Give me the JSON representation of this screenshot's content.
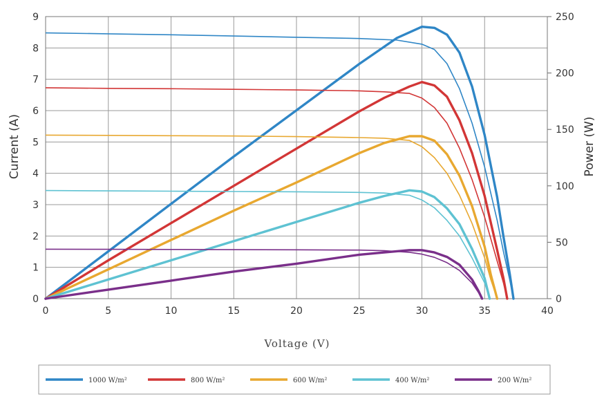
{
  "chart_data": {
    "type": "line",
    "xlabel": "Voltage (V)",
    "ylabel_left": "Current (A)",
    "ylabel_right": "Power (W)",
    "xlim": [
      0,
      40
    ],
    "ylim_left": [
      0,
      9
    ],
    "ylim_right": [
      0,
      250
    ],
    "x_ticks": [
      "0",
      "5",
      "10",
      "15",
      "20",
      "25",
      "30",
      "35",
      "40"
    ],
    "y_left_ticks": [
      "0",
      "1",
      "2",
      "3",
      "4",
      "5",
      "6",
      "7",
      "8",
      "9"
    ],
    "y_right_ticks": [
      "0",
      "50",
      "100",
      "150",
      "200",
      "250"
    ],
    "grid": true,
    "legend_position": "bottom",
    "series": [
      {
        "name": "1000 W/m²",
        "color": "#2f86c6",
        "current": {
          "x": [
            0,
            5,
            10,
            15,
            20,
            25,
            28,
            30,
            31,
            32,
            33,
            34,
            35,
            36,
            36.5,
            37,
            37.3
          ],
          "y": [
            8.48,
            8.45,
            8.42,
            8.38,
            8.34,
            8.3,
            8.25,
            8.12,
            7.95,
            7.5,
            6.7,
            5.6,
            4.2,
            2.5,
            1.5,
            0.6,
            0
          ]
        },
        "power": {
          "x": [
            0,
            5,
            10,
            15,
            20,
            25,
            28,
            30,
            31,
            32,
            33,
            34,
            35,
            36,
            36.5,
            37,
            37.3
          ],
          "y": [
            0,
            42,
            84,
            126,
            167,
            208,
            231,
            241,
            240,
            234,
            218,
            188,
            145,
            90,
            55,
            22,
            0
          ]
        }
      },
      {
        "name": "800 W/m²",
        "color": "#d23636",
        "current": {
          "x": [
            0,
            5,
            10,
            15,
            20,
            25,
            27,
            29,
            30,
            31,
            32,
            33,
            34,
            35,
            36,
            36.5,
            36.8
          ],
          "y": [
            6.73,
            6.71,
            6.7,
            6.68,
            6.66,
            6.63,
            6.6,
            6.55,
            6.4,
            6.1,
            5.6,
            4.8,
            3.8,
            2.6,
            1.2,
            0.5,
            0
          ]
        },
        "power": {
          "x": [
            0,
            5,
            10,
            15,
            20,
            25,
            27,
            29,
            30,
            31,
            32,
            33,
            34,
            35,
            36,
            36.5,
            36.8
          ],
          "y": [
            0,
            34,
            67,
            100,
            133,
            166,
            178,
            188,
            192,
            189,
            179,
            158,
            129,
            91,
            43,
            18,
            0
          ]
        }
      },
      {
        "name": "600 W/m²",
        "color": "#e8a830",
        "current": {
          "x": [
            0,
            5,
            10,
            15,
            20,
            25,
            27,
            29,
            30,
            31,
            32,
            33,
            34,
            35,
            35.5,
            36
          ],
          "y": [
            5.22,
            5.21,
            5.2,
            5.19,
            5.17,
            5.14,
            5.12,
            5.05,
            4.85,
            4.5,
            4.0,
            3.3,
            2.4,
            1.3,
            0.6,
            0
          ]
        },
        "power": {
          "x": [
            0,
            5,
            10,
            15,
            20,
            25,
            27,
            29,
            30,
            31,
            32,
            33,
            34,
            35,
            35.5,
            36
          ],
          "y": [
            0,
            26,
            52,
            78,
            103,
            129,
            138,
            144,
            144,
            140,
            128,
            109,
            82,
            46,
            21,
            0
          ]
        }
      },
      {
        "name": "400 W/m²",
        "color": "#5ec2d2",
        "current": {
          "x": [
            0,
            5,
            10,
            15,
            20,
            25,
            27,
            29,
            30,
            31,
            32,
            33,
            34,
            35,
            35.4
          ],
          "y": [
            3.45,
            3.44,
            3.43,
            3.42,
            3.41,
            3.39,
            3.37,
            3.3,
            3.15,
            2.9,
            2.5,
            2.0,
            1.3,
            0.5,
            0
          ]
        },
        "power": {
          "x": [
            0,
            5,
            10,
            15,
            20,
            25,
            27,
            29,
            30,
            31,
            32,
            33,
            34,
            35,
            35.4
          ],
          "y": [
            0,
            17,
            34,
            51,
            68,
            85,
            91,
            96,
            95,
            90,
            80,
            66,
            44,
            18,
            0
          ]
        }
      },
      {
        "name": "200 W/m²",
        "color": "#7a2f8a",
        "current": {
          "x": [
            0,
            5,
            10,
            15,
            20,
            25,
            27,
            29,
            30,
            31,
            32,
            33,
            34,
            34.5,
            34.8
          ],
          "y": [
            1.58,
            1.575,
            1.57,
            1.565,
            1.56,
            1.55,
            1.53,
            1.48,
            1.42,
            1.32,
            1.15,
            0.9,
            0.5,
            0.2,
            0
          ]
        },
        "power": {
          "x": [
            0,
            5,
            10,
            15,
            20,
            25,
            27,
            29,
            30,
            31,
            32,
            33,
            34,
            34.5,
            34.8
          ],
          "y": [
            0,
            8,
            16,
            24,
            31,
            39,
            41,
            43,
            43,
            41,
            37,
            30,
            17,
            7,
            0
          ]
        }
      }
    ]
  }
}
